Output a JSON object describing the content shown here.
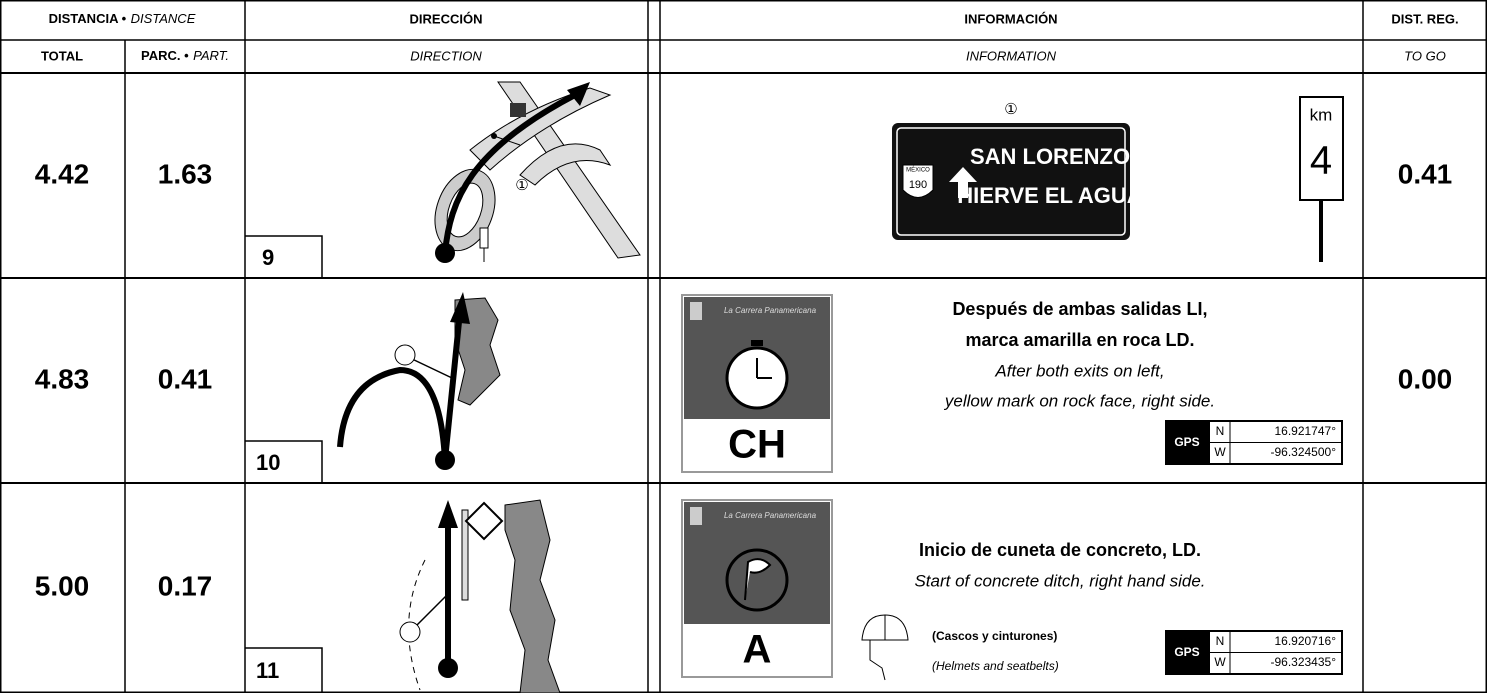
{
  "header": {
    "distance_es": "DISTANCIA •",
    "distance_en": "DISTANCE",
    "direction_es": "DIRECCIÓN",
    "information_es": "INFORMACIÓN",
    "dist_reg": "DIST. REG.",
    "total": "TOTAL",
    "partial_es": "PARC. •",
    "partial_en": "PART.",
    "direction_en": "DIRECTION",
    "information_en": "INFORMATION",
    "to_go": "TO GO"
  },
  "rows": [
    {
      "total": "4.42",
      "partial": "1.63",
      "number": "9",
      "to_go": "0.41",
      "direction_marker": "①",
      "sign": {
        "marker": "①",
        "shield_top": "MÉXICO",
        "shield_number": "190",
        "lines": [
          "SAN LORENZO",
          "HIERVE EL AGUA"
        ]
      },
      "km_post": {
        "label": "km",
        "value": "4"
      }
    },
    {
      "total": "4.83",
      "partial": "0.41",
      "number": "10",
      "to_go": "0.00",
      "card": {
        "brand": "La Carrera Panamericana",
        "letter": "CH"
      },
      "text_es": [
        "Después de ambas salidas LI,",
        "marca amarilla en roca LD."
      ],
      "text_en": [
        "After both exits on left,",
        "yellow mark on rock face, right side."
      ],
      "gps": {
        "label": "GPS",
        "n": "N",
        "n_value": "16.921747°",
        "w": "W",
        "w_value": "-96.324500°"
      }
    },
    {
      "total": "5.00",
      "partial": "0.17",
      "number": "11",
      "card": {
        "brand": "La Carrera Panamericana",
        "letter": "A"
      },
      "text_es": [
        "Inicio de cuneta de concreto, LD."
      ],
      "text_en": [
        "Start of concrete ditch, right hand side."
      ],
      "note": {
        "es": "(Cascos y cinturones)",
        "en": "(Helmets and seatbelts)"
      },
      "gps": {
        "label": "GPS",
        "n": "N",
        "n_value": "16.920716°",
        "w": "W",
        "w_value": "-96.323435°"
      }
    }
  ]
}
